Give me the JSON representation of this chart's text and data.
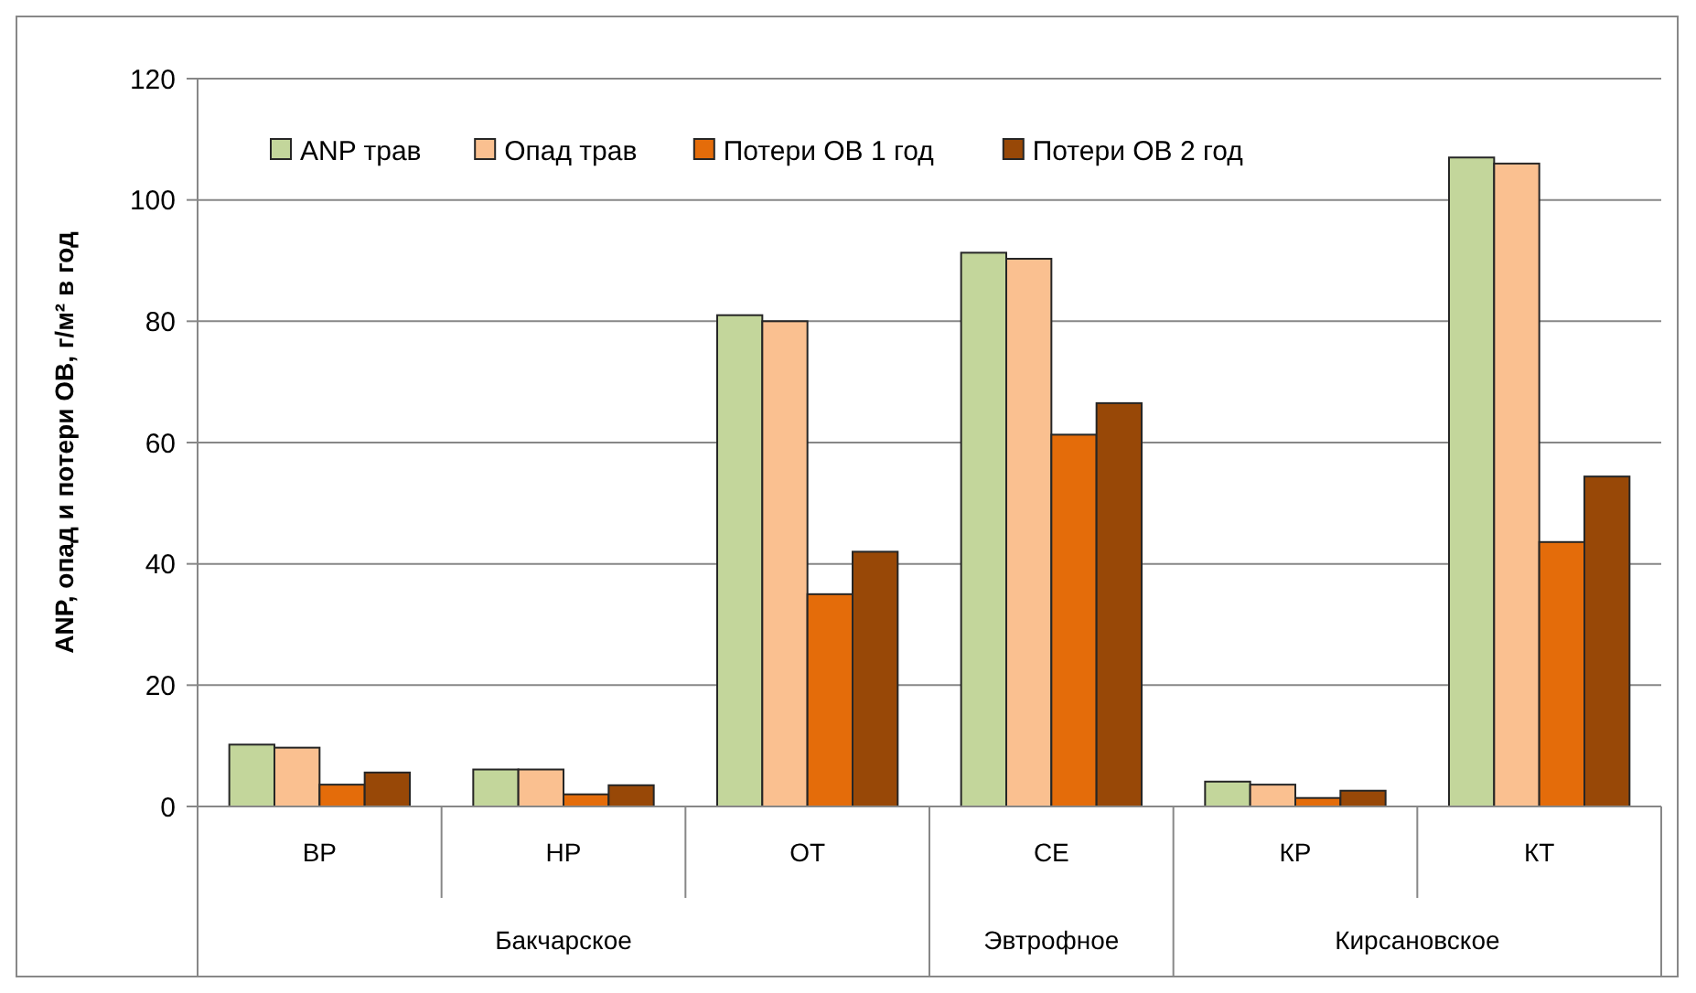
{
  "chart_data": {
    "type": "bar",
    "ylabel": "ANP, опад и потери ОВ, г/м² в год",
    "categories": [
      "ВР",
      "НР",
      "ОТ",
      "СЕ",
      "КР",
      "КТ"
    ],
    "series": [
      {
        "name": "ANP трав",
        "color": "#c3d69b",
        "values": [
          10.2,
          6.1,
          81,
          91.3,
          4.1,
          107
        ]
      },
      {
        "name": "Опад трав",
        "color": "#fac090",
        "values": [
          9.7,
          6.1,
          80,
          90.3,
          3.6,
          106
        ]
      },
      {
        "name": "Потери ОВ 1 год",
        "color": "#e46c0a",
        "values": [
          3.6,
          2.0,
          35,
          61.3,
          1.4,
          43.6
        ]
      },
      {
        "name": "Потери ОВ 2 год",
        "color": "#984807",
        "values": [
          5.6,
          3.5,
          42,
          66.5,
          2.6,
          54.4
        ]
      }
    ],
    "ylim": [
      0,
      120
    ],
    "yticks": [
      0,
      20,
      40,
      60,
      80,
      100,
      120
    ],
    "grid": "y",
    "legend": "top",
    "annotations": [
      "Бакчарское",
      "Эвтрофное",
      "Кирсановское"
    ]
  }
}
